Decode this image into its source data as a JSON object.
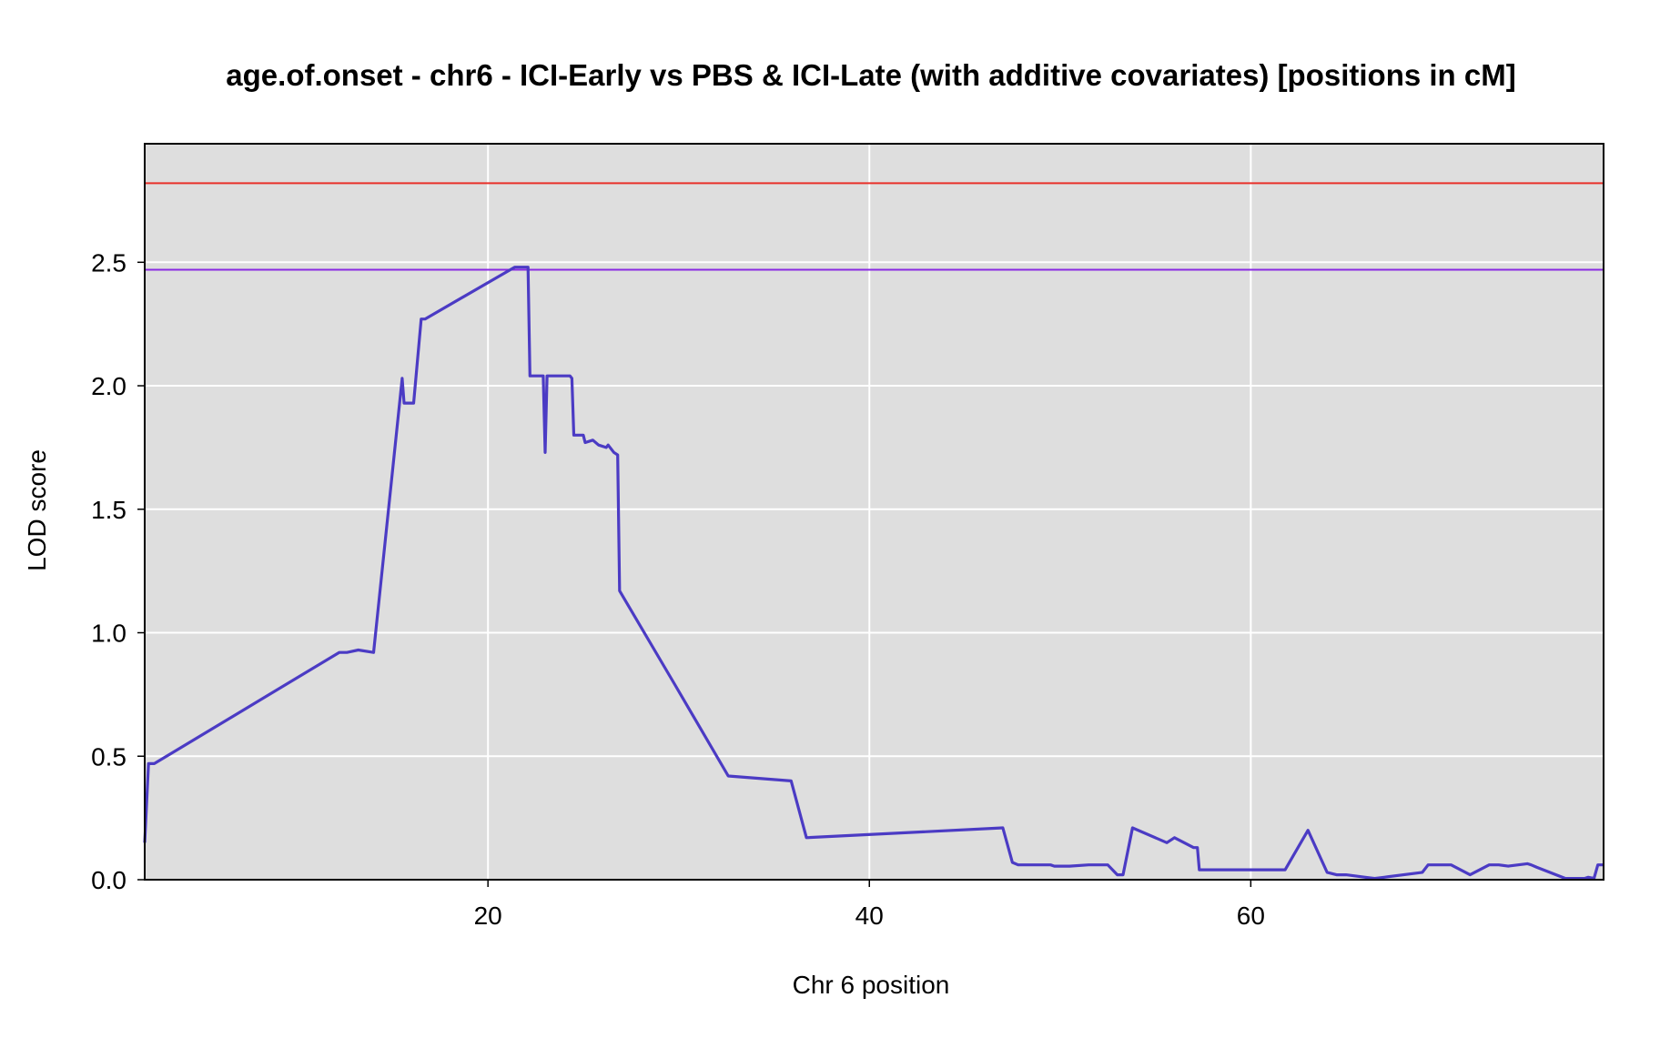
{
  "chart_data": {
    "type": "line",
    "title": "age.of.onset - chr6 - ICI-Early vs PBS & ICI-Late (with additive covariates) [positions in cM]",
    "xlabel": "Chr 6 position",
    "ylabel": "LOD score",
    "xlim": [
      2,
      78.5
    ],
    "ylim": [
      0,
      2.98
    ],
    "x_ticks": [
      20,
      40,
      60
    ],
    "x_tick_labels": [
      "20",
      "40",
      "60"
    ],
    "y_ticks": [
      0,
      0.5,
      1,
      1.5,
      2,
      2.5
    ],
    "y_tick_labels": [
      "0.0",
      "0.5",
      "1.0",
      "1.5",
      "2.0",
      "2.5"
    ],
    "grid": true,
    "background": "#dedede",
    "thresholds": [
      {
        "value": 2.82,
        "color": "#e8302a"
      },
      {
        "value": 2.47,
        "color": "#8a2be2"
      }
    ],
    "series": [
      {
        "color": "#4b3bc4",
        "x": [
          2.0,
          2.2,
          2.5,
          12.2,
          12.6,
          13.2,
          14.0,
          15.5,
          15.6,
          16.1,
          16.5,
          16.7,
          21.4,
          22.1,
          22.2,
          22.9,
          23.0,
          23.1,
          24.3,
          24.4,
          24.5,
          25.0,
          25.1,
          25.5,
          25.8,
          26.2,
          26.3,
          26.6,
          26.8,
          26.9,
          29.8,
          32.6,
          35.9,
          36.7,
          47.0,
          47.5,
          47.8,
          49.5,
          49.7,
          50.5,
          51.5,
          52.5,
          53.0,
          53.1,
          53.3,
          53.8,
          55.6,
          56.0,
          57.0,
          57.2,
          57.3,
          61.8,
          63.0,
          64.0,
          64.5,
          65.0,
          66.0,
          66.5,
          67.0,
          69.0,
          69.3,
          70.5,
          71.5,
          72.5,
          73.0,
          73.5,
          74.5,
          74.7,
          75.0,
          76.5,
          77.5,
          77.7,
          78.0,
          78.2,
          78.5
        ],
        "y": [
          0.15,
          0.47,
          0.47,
          0.92,
          0.92,
          0.93,
          0.92,
          2.03,
          1.93,
          1.93,
          2.27,
          2.27,
          2.48,
          2.48,
          2.04,
          2.04,
          1.73,
          2.04,
          2.04,
          2.03,
          1.8,
          1.8,
          1.77,
          1.78,
          1.76,
          1.75,
          1.76,
          1.73,
          1.72,
          1.17,
          0.79,
          0.42,
          0.4,
          0.17,
          0.21,
          0.07,
          0.06,
          0.06,
          0.055,
          0.055,
          0.06,
          0.06,
          0.02,
          0.02,
          0.02,
          0.21,
          0.15,
          0.17,
          0.13,
          0.13,
          0.04,
          0.04,
          0.2,
          0.03,
          0.02,
          0.02,
          0.01,
          0.005,
          0.01,
          0.03,
          0.06,
          0.06,
          0.02,
          0.06,
          0.06,
          0.055,
          0.065,
          0.06,
          0.05,
          0.005,
          0.005,
          0.01,
          0.005,
          0.06,
          0.06
        ]
      }
    ]
  }
}
